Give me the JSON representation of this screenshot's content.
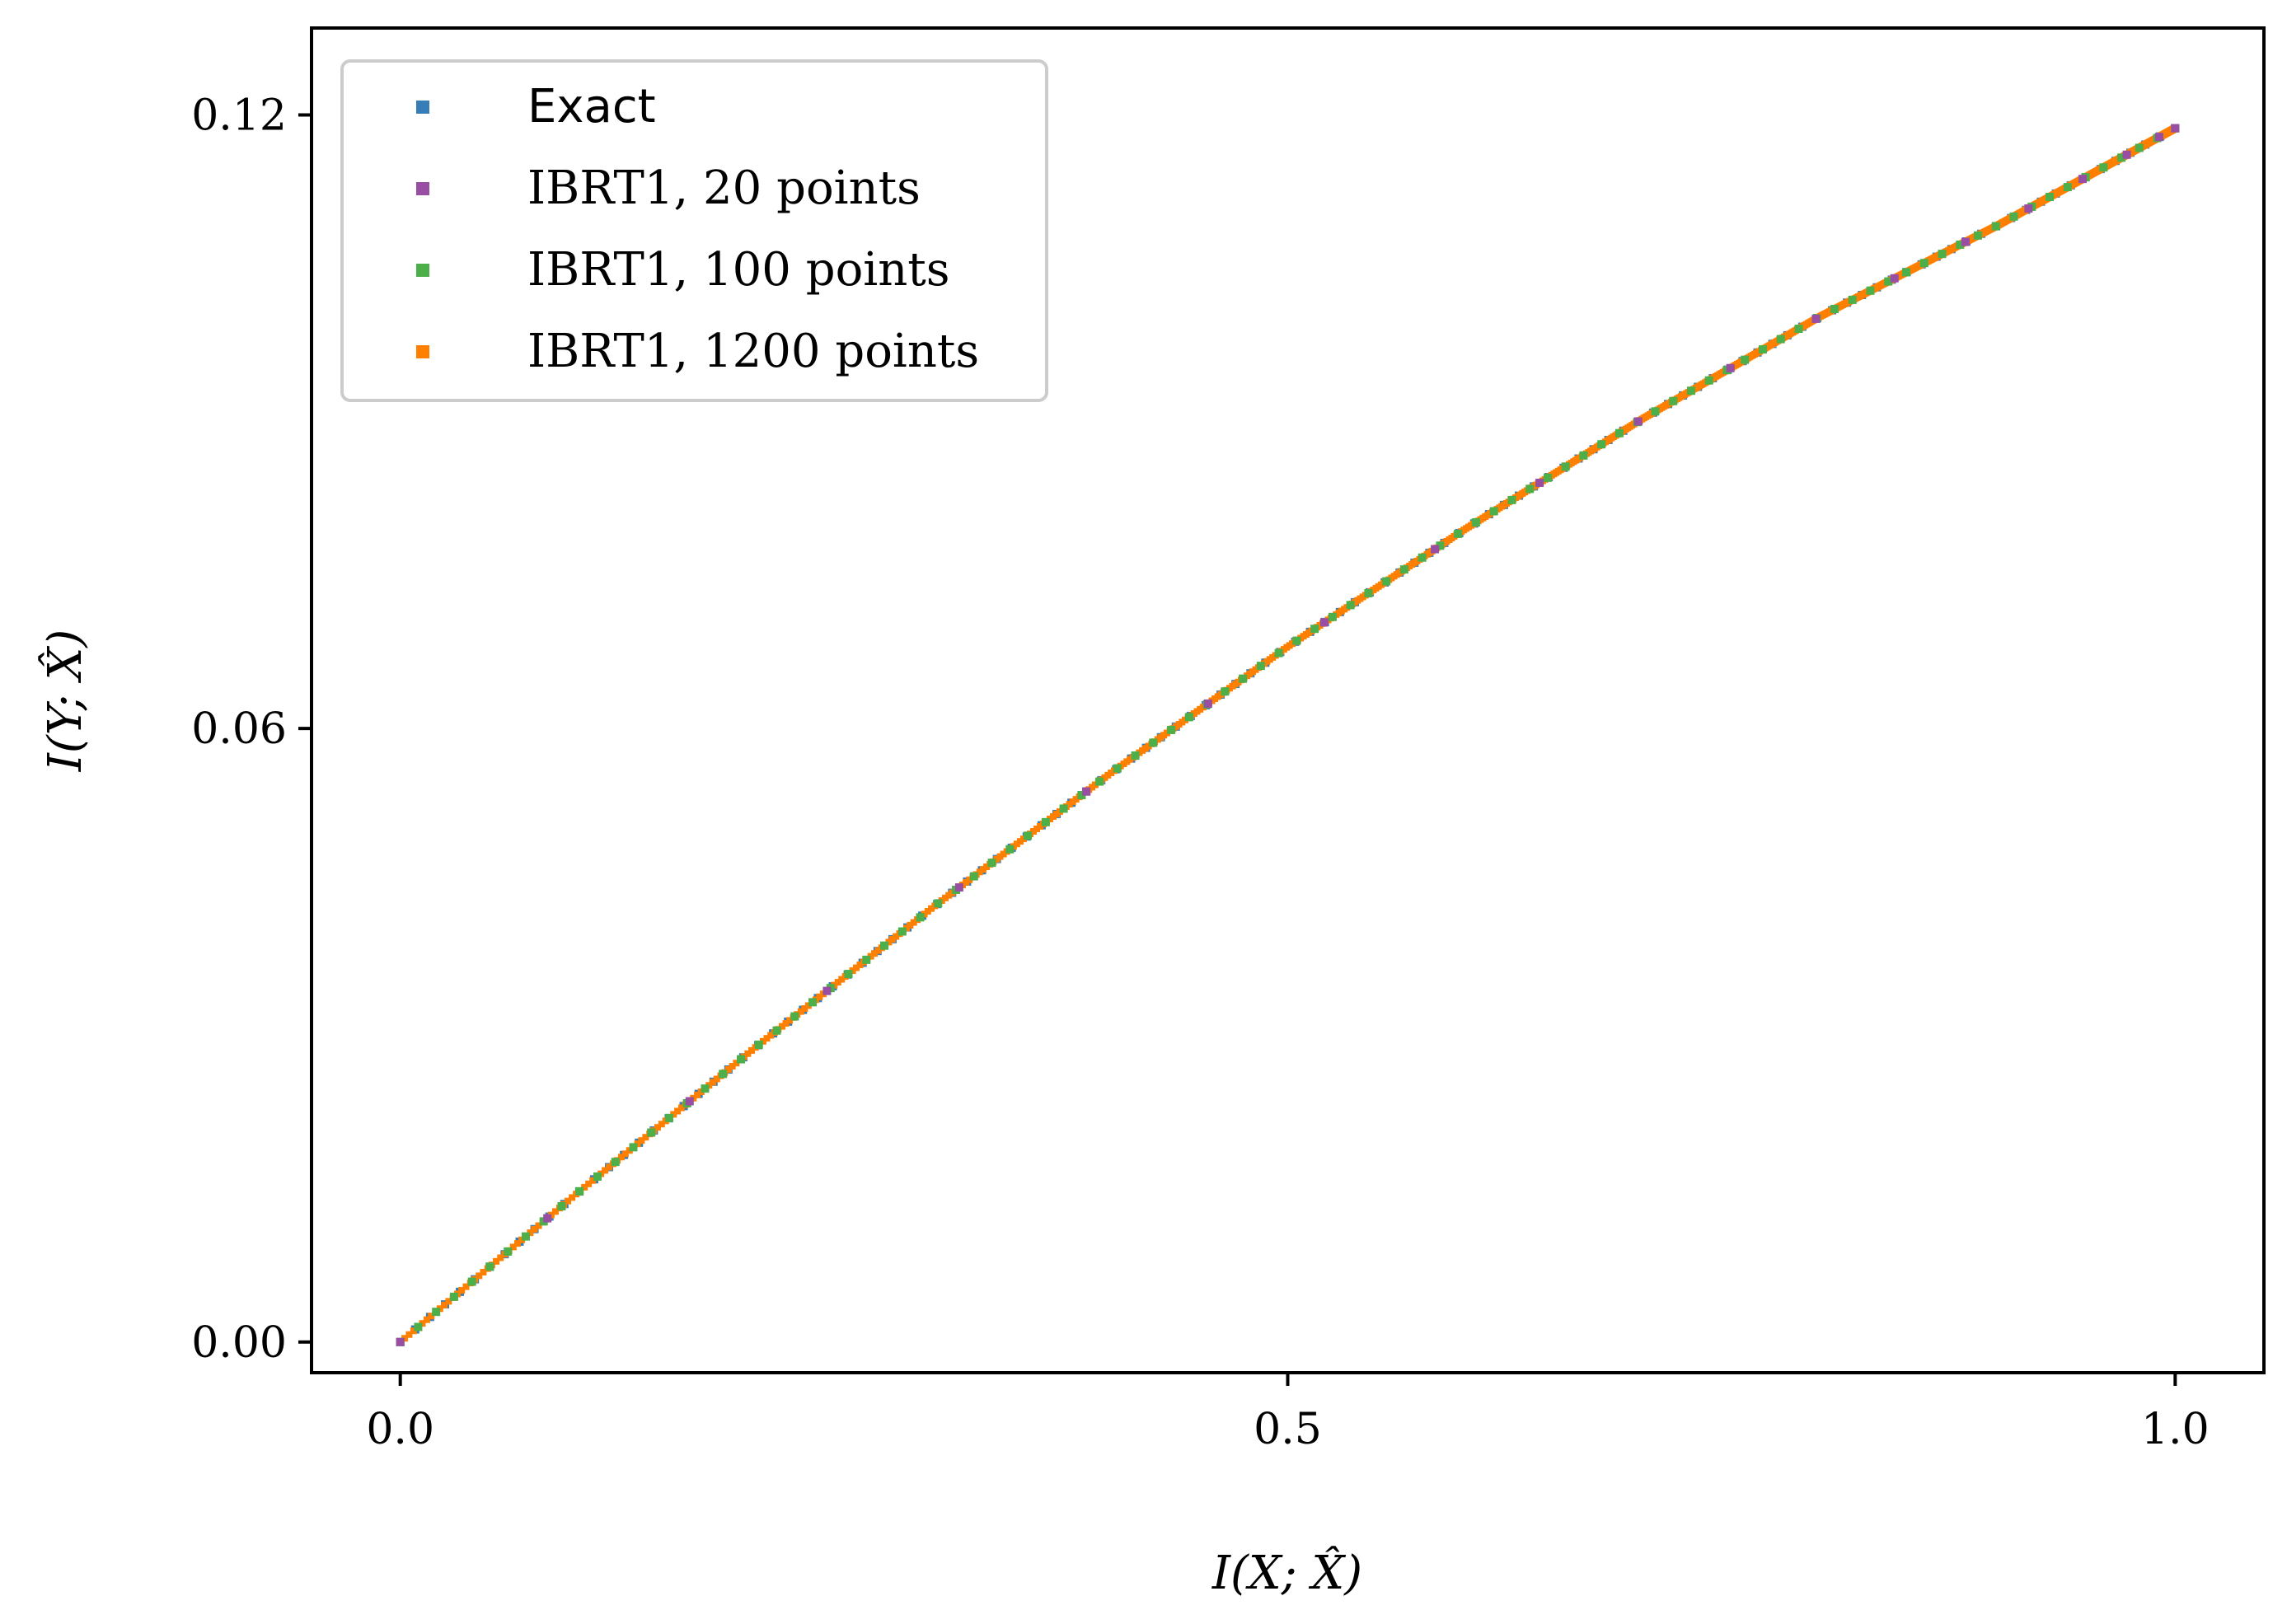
{
  "chart_data": {
    "type": "scatter",
    "xlabel": "I(X; X̂)",
    "ylabel": "I(Y; X̂)",
    "xlim": [
      -0.05,
      1.05
    ],
    "ylim": [
      -0.003,
      0.1285
    ],
    "xticks": [
      {
        "value": 0.0,
        "label": "0.0"
      },
      {
        "value": 0.5,
        "label": "0.5"
      },
      {
        "value": 1.0,
        "label": "1.0"
      }
    ],
    "yticks": [
      {
        "value": 0.0,
        "label": "0.00"
      },
      {
        "value": 0.06,
        "label": "0.06"
      },
      {
        "value": 0.12,
        "label": "0.12"
      }
    ],
    "grid": false,
    "legend_position": "top-left",
    "curve": {
      "x": [
        0.0,
        0.1,
        0.2,
        0.3,
        0.4,
        0.5,
        0.6,
        0.7,
        0.8,
        0.9,
        1.0
      ],
      "y": [
        0.0,
        0.0146,
        0.0288,
        0.0425,
        0.0556,
        0.068,
        0.0795,
        0.0903,
        0.1003,
        0.1092,
        0.1187
      ]
    },
    "series": [
      {
        "name": "Exact",
        "color": "#377eb8",
        "points": 120
      },
      {
        "name": "IBRT1, 20 points",
        "color": "#984ea3",
        "points": 20
      },
      {
        "name": "IBRT1, 100 points",
        "color": "#4daf4a",
        "points": 100
      },
      {
        "name": "IBRT1, 1200 points",
        "color": "#ff7f00",
        "points": 1200
      }
    ]
  }
}
